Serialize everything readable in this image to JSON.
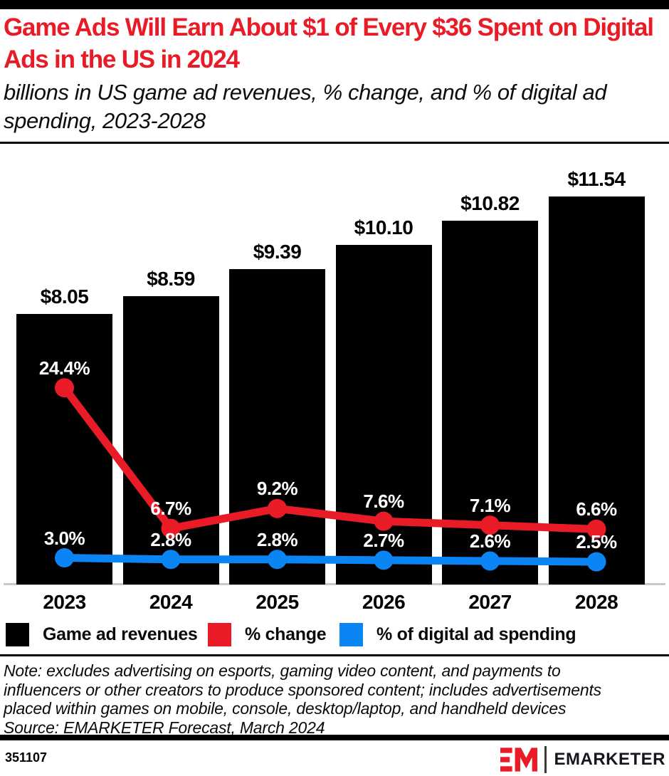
{
  "header": {
    "title": "Game Ads Will Earn About $1 of Every $36 Spent on Digital Ads in the US in 2024",
    "subtitle": "billions in US game ad revenues, % change, and % of digital ad spending, 2023-2028",
    "title_color": "#E81B26"
  },
  "chart_data": {
    "type": "bar",
    "subtype": "bar with two overlaid line series",
    "title": "Game Ads Will Earn About $1 of Every $36 Spent on Digital Ads in the US in 2024",
    "subtitle": "billions in US game ad revenues, % change, and % of digital ad spending, 2023-2028",
    "categories": [
      "2023",
      "2024",
      "2025",
      "2026",
      "2027",
      "2028"
    ],
    "series": [
      {
        "name": "Game ad revenues",
        "type": "bar",
        "color": "#000000",
        "unit": "billions of US dollars",
        "values": [
          8.05,
          8.59,
          9.39,
          10.1,
          10.82,
          11.54
        ],
        "labels": [
          "$8.05",
          "$8.59",
          "$9.39",
          "$10.10",
          "$10.82",
          "$11.54"
        ]
      },
      {
        "name": "% change",
        "type": "line",
        "color": "#E81B26",
        "unit": "percent",
        "values": [
          24.4,
          6.7,
          9.2,
          7.6,
          7.1,
          6.6
        ],
        "labels": [
          "24.4%",
          "6.7%",
          "9.2%",
          "7.6%",
          "7.1%",
          "6.6%"
        ]
      },
      {
        "name": "% of digital ad spending",
        "type": "line",
        "color": "#0B84F4",
        "unit": "percent",
        "values": [
          3.0,
          2.8,
          2.8,
          2.7,
          2.6,
          2.5
        ],
        "labels": [
          "3.0%",
          "2.8%",
          "2.8%",
          "2.7%",
          "2.6%",
          "2.5%"
        ]
      }
    ],
    "grid": false,
    "value_axis_visible": false,
    "legend_position": "bottom",
    "axis_line_color": "#c9c9c9"
  },
  "footnote": {
    "lines": [
      "Note: excludes advertising on esports, gaming video content, and payments to",
      "influencers or other creators to produce sponsored content; includes advertisements",
      "placed within games on mobile, console, desktop/laptop, and handheld devices"
    ],
    "source": "Source: EMARKETER Forecast, March 2024"
  },
  "footer": {
    "chart_id": "351107",
    "brand": "EMARKETER"
  }
}
